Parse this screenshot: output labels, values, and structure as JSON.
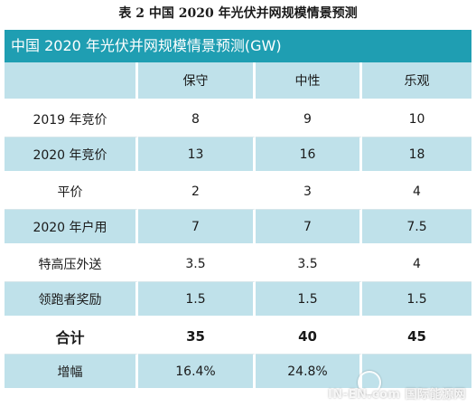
{
  "caption": "表 2  中国 2020 年光伏并网规模情景预测",
  "table_title": "中国 2020 年光伏并网规模情景预测(GW)",
  "columns": [
    "",
    "保守",
    "中性",
    "乐观"
  ],
  "rows": [
    {
      "label": "2019 年竞价",
      "values": [
        "8",
        "9",
        "10"
      ]
    },
    {
      "label": "2020 年竞价",
      "values": [
        "13",
        "16",
        "18"
      ]
    },
    {
      "label": "平价",
      "values": [
        "2",
        "3",
        "4"
      ]
    },
    {
      "label": "2020 年户用",
      "values": [
        "7",
        "7",
        "7.5"
      ]
    },
    {
      "label": "特高压外送",
      "values": [
        "3.5",
        "3.5",
        "4"
      ]
    },
    {
      "label": "领跑者奖励",
      "values": [
        "1.5",
        "1.5",
        "1.5"
      ]
    },
    {
      "label": "合计",
      "values": [
        "35",
        "40",
        "45"
      ]
    },
    {
      "label": "增幅",
      "values": [
        "16.4%",
        "24.8%",
        ""
      ]
    }
  ],
  "watermark": "IN-EN.com 国际能源网",
  "colors": {
    "title_bar": "#1f9eb2",
    "shade": "#bfe1ea"
  }
}
